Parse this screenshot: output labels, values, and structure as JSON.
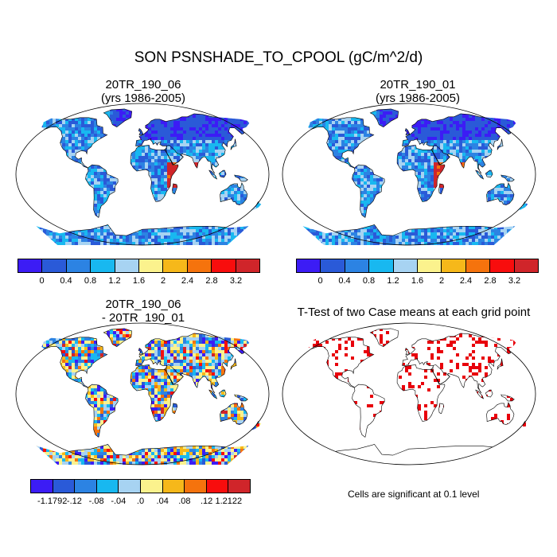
{
  "main_title": "SON PSNSHADE_TO_CPOOL (gC/m^2/d)",
  "panels": [
    {
      "title_line1": "20TR_190_06",
      "title_line2": "(yrs 1986-2005)"
    },
    {
      "title_line1": "20TR_190_01",
      "title_line2": "(yrs 1986-2005)"
    },
    {
      "title_line1": "20TR_190_06",
      "title_line2": "- 20TR_190_01"
    },
    {
      "title_line1": "T-Test of two Case means at each grid point"
    }
  ],
  "colorbar_top": {
    "colors": [
      "#3c1cf5",
      "#2a5ad8",
      "#2c83e3",
      "#18b8f0",
      "#a7d3f2",
      "#fbf28d",
      "#f6b81a",
      "#f5730d",
      "#f80d0d",
      "#d0252a"
    ],
    "labels": [
      "0",
      "0.4",
      "0.8",
      "1.2",
      "1.6",
      "2",
      "2.4",
      "2.8",
      "3.2"
    ]
  },
  "colorbar_bottom": {
    "colors": [
      "#3c1cf5",
      "#2a5ad8",
      "#2c83e3",
      "#18b8f0",
      "#a7d3f2",
      "#fbf28d",
      "#f6b81a",
      "#f5730d",
      "#f80d0d",
      "#d0252a"
    ],
    "labels": [
      "-1.1792",
      "-.12",
      "-.08",
      "-.04",
      ".0",
      ".04",
      ".08",
      ".12",
      "1.2122"
    ]
  },
  "significance_note": "Cells are significant at 0.1 level",
  "colors": {
    "ocean": "#ffffff",
    "coast": "#000000",
    "signif": "#e8000b"
  }
}
